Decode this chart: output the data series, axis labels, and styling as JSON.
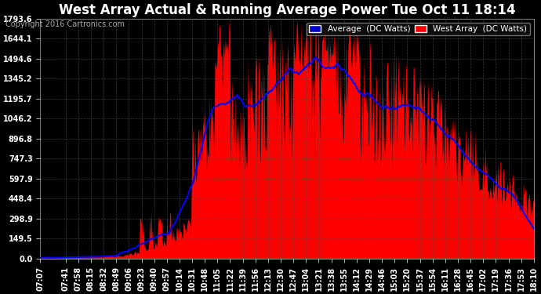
{
  "title": "West Array Actual & Running Average Power Tue Oct 11 18:14",
  "copyright": "Copyright 2016 Cartronics.com",
  "legend_avg": "Average  (DC Watts)",
  "legend_west": "West Array  (DC Watts)",
  "bg_color": "#000000",
  "plot_bg_color": "#000000",
  "grid_color": "#555555",
  "title_color": "#ffffff",
  "tick_color": "#ffffff",
  "red_color": "#ff0000",
  "blue_color": "#0000ff",
  "ylim": [
    0.0,
    1793.6
  ],
  "yticks": [
    0.0,
    149.5,
    298.9,
    448.4,
    597.9,
    747.3,
    896.8,
    1046.2,
    1195.7,
    1345.2,
    1494.6,
    1644.1,
    1793.6
  ],
  "xtick_labels": [
    "07:07",
    "07:41",
    "07:58",
    "08:15",
    "08:32",
    "08:49",
    "09:06",
    "09:23",
    "09:40",
    "09:57",
    "10:14",
    "10:31",
    "10:48",
    "11:05",
    "11:22",
    "11:39",
    "11:56",
    "12:13",
    "12:30",
    "12:47",
    "13:04",
    "13:21",
    "13:38",
    "13:55",
    "14:12",
    "14:29",
    "14:46",
    "15:03",
    "15:20",
    "15:37",
    "15:54",
    "16:11",
    "16:28",
    "16:45",
    "17:02",
    "17:19",
    "17:36",
    "17:53",
    "18:10"
  ]
}
